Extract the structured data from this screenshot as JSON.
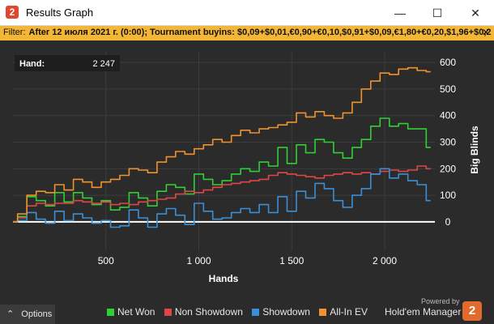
{
  "window": {
    "title": "Results Graph",
    "icon_glyph": "2",
    "minimize_glyph": "—",
    "maximize_glyph": "☐",
    "close_glyph": "✕"
  },
  "filter": {
    "label": "Filter:",
    "value": "After 12 июля 2021 г. (0:00); Tournament buyins: $0,09+$0,01,€0,90+€0,10,$0,91+$0,09,€1,80+€0,20,$1,96+$0,2",
    "close_glyph": "✕"
  },
  "tooltip": {
    "label": "Hand:",
    "value": "2 247"
  },
  "colors": {
    "net_won": "#2ed133",
    "non_showdown": "#e04646",
    "showdown": "#3a8fd6",
    "all_in_ev": "#f0922d",
    "zero_line": "#ffffff",
    "grid": "#3d3d3d",
    "filter_bg": "#f4b637",
    "logo": "#e26a2c"
  },
  "chart_data": {
    "type": "line",
    "xlabel": "Hands",
    "ylabel": "Big Blinds",
    "xlim": [
      0,
      2270
    ],
    "ylim": [
      -110,
      640
    ],
    "x_ticks": [
      500,
      1000,
      1500,
      2000
    ],
    "x_tick_labels": [
      "500",
      "1 000",
      "1 500",
      "2 000"
    ],
    "y_ticks": [
      0,
      100,
      200,
      300,
      400,
      500,
      600
    ],
    "y_tick_labels": [
      "0",
      "100",
      "200",
      "300",
      "400",
      "500",
      "600"
    ],
    "grid": true,
    "legend_position": "bottom",
    "x": [
      0,
      50,
      100,
      150,
      200,
      250,
      300,
      350,
      400,
      450,
      500,
      550,
      600,
      650,
      700,
      750,
      800,
      850,
      900,
      950,
      1000,
      1050,
      1100,
      1150,
      1200,
      1250,
      1300,
      1350,
      1400,
      1450,
      1500,
      1550,
      1600,
      1650,
      1700,
      1750,
      1800,
      1850,
      1900,
      1950,
      2000,
      2050,
      2100,
      2150,
      2200,
      2247
    ],
    "series": [
      {
        "name": "Net Won",
        "key": "net_won",
        "values": [
          0,
          20,
          95,
          80,
          60,
          110,
          75,
          110,
          90,
          65,
          80,
          45,
          55,
          110,
          90,
          60,
          115,
          140,
          130,
          105,
          180,
          160,
          140,
          155,
          180,
          200,
          190,
          225,
          210,
          280,
          220,
          290,
          260,
          310,
          300,
          260,
          240,
          280,
          310,
          360,
          390,
          360,
          370,
          350,
          350,
          280
        ]
      },
      {
        "name": "Non Showdown",
        "key": "non_showdown",
        "values": [
          0,
          15,
          60,
          70,
          65,
          70,
          70,
          80,
          75,
          70,
          75,
          65,
          70,
          65,
          75,
          80,
          85,
          90,
          105,
          115,
          110,
          120,
          130,
          140,
          145,
          150,
          155,
          160,
          175,
          185,
          180,
          175,
          170,
          165,
          175,
          180,
          185,
          180,
          185,
          180,
          190,
          195,
          190,
          195,
          210,
          200
        ]
      },
      {
        "name": "Showdown",
        "key": "showdown",
        "values": [
          0,
          5,
          35,
          10,
          -5,
          40,
          5,
          30,
          15,
          -5,
          5,
          -20,
          -15,
          45,
          15,
          -20,
          30,
          50,
          25,
          -10,
          70,
          40,
          10,
          15,
          35,
          50,
          35,
          65,
          35,
          95,
          40,
          115,
          90,
          145,
          125,
          80,
          55,
          100,
          125,
          180,
          200,
          165,
          180,
          155,
          140,
          80
        ]
      },
      {
        "name": "All-In EV",
        "key": "all_in_ev",
        "values": [
          0,
          30,
          100,
          115,
          110,
          140,
          120,
          160,
          150,
          130,
          150,
          160,
          175,
          200,
          195,
          185,
          225,
          245,
          265,
          255,
          275,
          290,
          310,
          300,
          325,
          345,
          335,
          350,
          355,
          365,
          375,
          410,
          395,
          415,
          400,
          390,
          410,
          450,
          500,
          530,
          560,
          555,
          575,
          580,
          570,
          565
        ]
      }
    ]
  },
  "legend": {
    "items": [
      {
        "label": "Net Won",
        "key": "net_won"
      },
      {
        "label": "Non Showdown",
        "key": "non_showdown"
      },
      {
        "label": "Showdown",
        "key": "showdown"
      },
      {
        "label": "All-In EV",
        "key": "all_in_ev"
      }
    ]
  },
  "footer": {
    "options_label": "Options",
    "options_icon": "chevron-up-icon",
    "options_glyph": "⌃",
    "powered_by": "Powered by",
    "brand_name": "Hold'em Manager",
    "brand_logo_glyph": "2"
  }
}
